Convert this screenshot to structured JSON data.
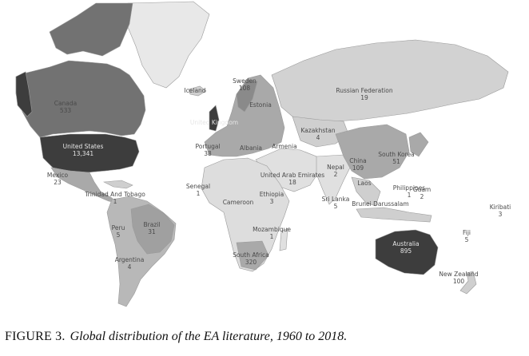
{
  "map": {
    "labels": [
      {
        "id": "canada",
        "name": "Canada",
        "value": "533"
      },
      {
        "id": "united-states",
        "name": "United States",
        "value": "13,341"
      },
      {
        "id": "mexico",
        "name": "Mexico",
        "value": "23"
      },
      {
        "id": "trinidad",
        "name": "Trinidad And Tobago",
        "value": "1"
      },
      {
        "id": "peru",
        "name": "Peru",
        "value": "5"
      },
      {
        "id": "brazil",
        "name": "Brazil",
        "value": "31"
      },
      {
        "id": "argentina",
        "name": "Argentina",
        "value": "4"
      },
      {
        "id": "iceland",
        "name": "Iceland",
        "value": ""
      },
      {
        "id": "sweden",
        "name": "Sweden",
        "value": "108"
      },
      {
        "id": "estonia",
        "name": "Estonia",
        "value": ""
      },
      {
        "id": "uk",
        "name": "United Kingdom",
        "value": ""
      },
      {
        "id": "portugal",
        "name": "Portugal",
        "value": "38"
      },
      {
        "id": "albania",
        "name": "Albania",
        "value": ""
      },
      {
        "id": "armenia",
        "name": "Armenia",
        "value": ""
      },
      {
        "id": "kazakhstan",
        "name": "Kazakhstan",
        "value": "4"
      },
      {
        "id": "russia",
        "name": "Russian Federation",
        "value": "19"
      },
      {
        "id": "uae",
        "name": "United Arab Emirates",
        "value": "18"
      },
      {
        "id": "nepal",
        "name": "Nepal",
        "value": "2"
      },
      {
        "id": "china",
        "name": "China",
        "value": "109"
      },
      {
        "id": "south-korea",
        "name": "South Korea",
        "value": "51"
      },
      {
        "id": "laos",
        "name": "Laos",
        "value": ""
      },
      {
        "id": "philippines",
        "name": "Philippines",
        "value": "1"
      },
      {
        "id": "guam",
        "name": "Guam",
        "value": "2"
      },
      {
        "id": "sri-lanka",
        "name": "Sri Lanka",
        "value": "5"
      },
      {
        "id": "brunei",
        "name": "Brunei Darussalam",
        "value": ""
      },
      {
        "id": "senegal",
        "name": "Senegal",
        "value": "1"
      },
      {
        "id": "cameroon",
        "name": "Cameroon",
        "value": ""
      },
      {
        "id": "ethiopia",
        "name": "Ethiopia",
        "value": "3"
      },
      {
        "id": "mozambique",
        "name": "Mozambique",
        "value": "1"
      },
      {
        "id": "south-africa",
        "name": "South Africa",
        "value": "320"
      },
      {
        "id": "australia",
        "name": "Australia",
        "value": "895"
      },
      {
        "id": "new-zealand",
        "name": "New Zealand",
        "value": "100"
      },
      {
        "id": "kiribati",
        "name": "Kiribati",
        "value": "3"
      },
      {
        "id": "fiji",
        "name": "Fiji",
        "value": "5"
      }
    ]
  },
  "caption": {
    "figure": "FIGURE 3.",
    "title": "Global distribution of the EA literature, 1960 to 2018."
  },
  "colors": {
    "max": "#3d3d3d",
    "high": "#727272",
    "mid": "#a9a9a9",
    "low": "#cfcfcf",
    "none": "#e6e6e6",
    "ocean": "#ffffff",
    "border": "#9a9a9a"
  }
}
